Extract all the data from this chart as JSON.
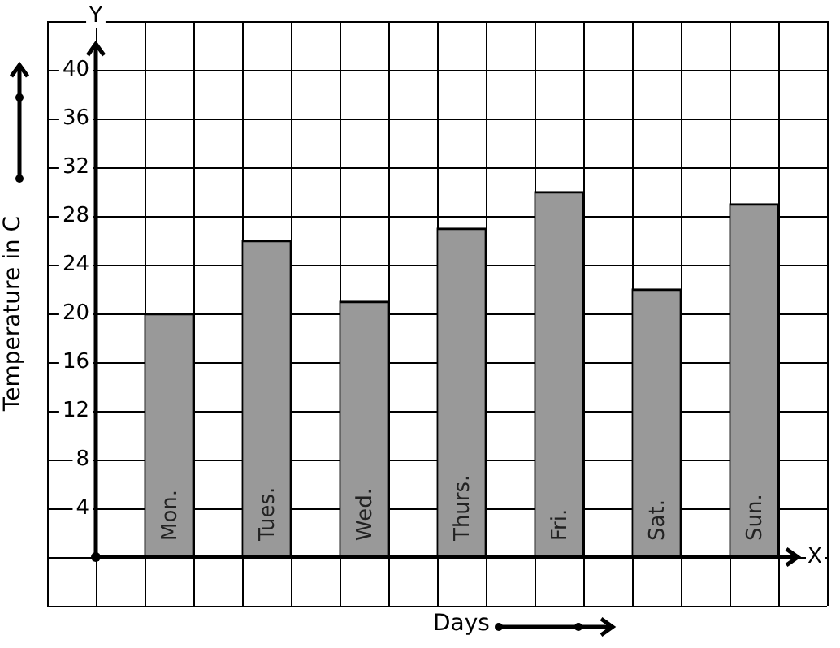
{
  "chart_data": {
    "type": "bar",
    "xlabel": "Days",
    "ylabel": "Temperature in C",
    "categories": [
      "Mon.",
      "Tues.",
      "Wed.",
      "Thurs.",
      "Fri.",
      "Sat.",
      "Sun."
    ],
    "values": [
      20,
      26,
      21,
      27,
      30,
      22,
      29
    ],
    "color": "#999999",
    "ylim": [
      0,
      40
    ],
    "yticks": [
      4,
      8,
      12,
      16,
      20,
      24,
      28,
      32,
      36,
      40
    ],
    "grid": true,
    "annotations": [
      "Y",
      "X"
    ]
  }
}
